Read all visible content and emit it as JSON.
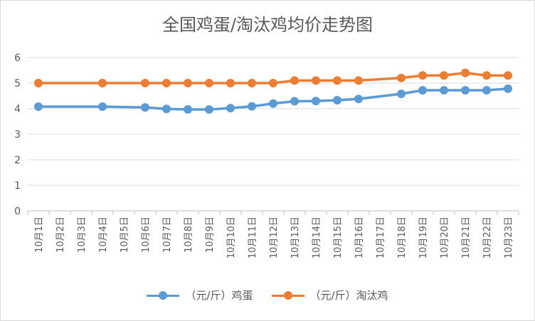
{
  "chart_data": {
    "type": "line",
    "title": "全国鸡蛋/淘汰鸡均价走势图",
    "xlabel": "",
    "ylabel": "",
    "ylim": [
      0,
      6
    ],
    "yticks": [
      "0",
      "1",
      "2",
      "3",
      "4",
      "5",
      "6"
    ],
    "categories": [
      "10月1日",
      "10月2日",
      "10月3日",
      "10月4日",
      "10月5日",
      "10月6日",
      "10月7日",
      "10月8日",
      "10月9日",
      "10月10日",
      "10月11日",
      "10月12日",
      "10月13日",
      "10月14日",
      "10月15日",
      "10月16日",
      "10月17日",
      "10月18日",
      "10月19日",
      "10月20日",
      "10月21日",
      "10月22日",
      "10月23日"
    ],
    "grid": true,
    "legend_position": "bottom",
    "series": [
      {
        "name": "（元/斤）鸡蛋",
        "color": "#5b9bd5",
        "values": [
          4.08,
          null,
          null,
          4.08,
          null,
          4.05,
          3.99,
          3.97,
          3.97,
          4.02,
          4.09,
          4.2,
          4.29,
          4.3,
          4.33,
          4.38,
          null,
          4.58,
          4.72,
          4.72,
          4.72,
          4.72,
          4.78
        ]
      },
      {
        "name": "（元/斤）淘汰鸡",
        "color": "#ed7d31",
        "values": [
          5.0,
          null,
          null,
          5.0,
          null,
          5.0,
          5.0,
          5.0,
          5.0,
          5.0,
          5.0,
          5.0,
          5.1,
          5.1,
          5.1,
          5.1,
          null,
          5.2,
          5.3,
          5.3,
          5.4,
          5.3,
          5.3
        ]
      }
    ]
  }
}
